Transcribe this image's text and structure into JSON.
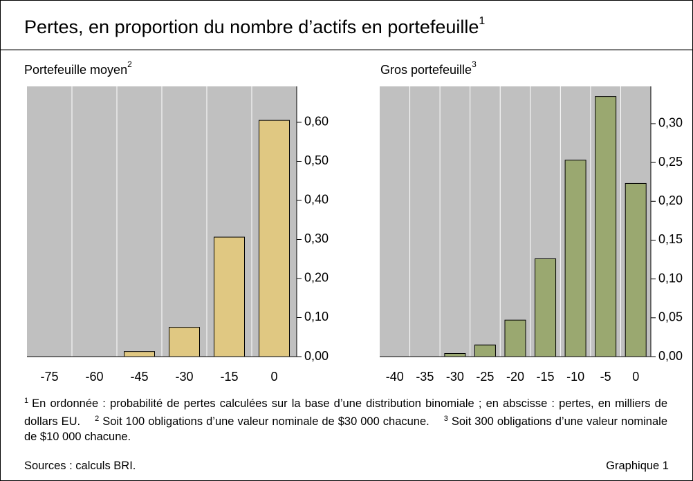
{
  "title": "Pertes, en proportion du nombre d’actifs en portefeuille",
  "title_note": "1",
  "chart_data": [
    {
      "type": "bar",
      "title": "Portefeuille moyen",
      "title_note": "2",
      "categories": [
        "-75",
        "-60",
        "-45",
        "-30",
        "-15",
        "0"
      ],
      "values": [
        0,
        0,
        0.013,
        0.075,
        0.306,
        0.605
      ],
      "color": "#e0c882",
      "ylim": [
        0,
        0.692
      ],
      "yticks": [
        {
          "value": 0,
          "label": "0,00"
        },
        {
          "value": 0.1,
          "label": "0,10"
        },
        {
          "value": 0.2,
          "label": "0,20"
        },
        {
          "value": 0.3,
          "label": "0,30"
        },
        {
          "value": 0.4,
          "label": "0,40"
        },
        {
          "value": 0.5,
          "label": "0,50"
        },
        {
          "value": 0.6,
          "label": "0,60"
        }
      ]
    },
    {
      "type": "bar",
      "title": "Gros portefeuille",
      "title_note": "3",
      "categories": [
        "-40",
        "-35",
        "-30",
        "-25",
        "-20",
        "-15",
        "-10",
        "-5",
        "0"
      ],
      "values": [
        0,
        0,
        0.004,
        0.015,
        0.047,
        0.126,
        0.253,
        0.335,
        0.223
      ],
      "color": "#9aa870",
      "ylim": [
        0,
        0.348
      ],
      "yticks": [
        {
          "value": 0,
          "label": "0,00"
        },
        {
          "value": 0.05,
          "label": "0,05"
        },
        {
          "value": 0.1,
          "label": "0,10"
        },
        {
          "value": 0.15,
          "label": "0,15"
        },
        {
          "value": 0.2,
          "label": "0,20"
        },
        {
          "value": 0.25,
          "label": "0,25"
        },
        {
          "value": 0.3,
          "label": "0,30"
        }
      ]
    }
  ],
  "footnotes": [
    {
      "mark": "1",
      "text": "En ordonnée : probabilité de pertes calculées sur la base d’une distribution binomiale ; en abscisse : pertes, en milliers de dollars EU."
    },
    {
      "mark": "2",
      "text": "Soit 100 obligations d’une valeur nominale de $30 000 chacune."
    },
    {
      "mark": "3",
      "text": "Soit 300 obligations d’une valeur nominale de $10 000 chacune."
    }
  ],
  "source": "Sources : calculs BRI.",
  "label": "Graphique 1"
}
